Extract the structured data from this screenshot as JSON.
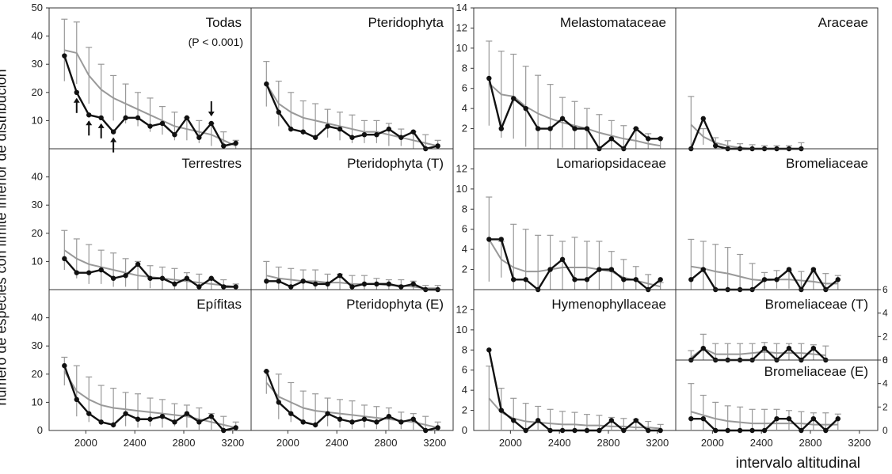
{
  "figure": {
    "ylabel": "número de especies con límite inferior de distribución",
    "xlabel": "intervalo altitudinal"
  },
  "chart_data": [
    {
      "type": "line",
      "title": "Todas",
      "annotation": "(P < 0.001)",
      "ylim": [
        0,
        50
      ],
      "yticks": [
        10,
        20,
        30,
        40,
        50
      ],
      "xticks": [
        2000,
        2400,
        2800,
        3200
      ],
      "x": [
        1825,
        1925,
        2025,
        2125,
        2225,
        2325,
        2425,
        2525,
        2625,
        2725,
        2825,
        2925,
        3025,
        3125,
        3225
      ],
      "series": [
        {
          "values": [
            33,
            20,
            12,
            11,
            6,
            11,
            11,
            8,
            9,
            5,
            11,
            4,
            9,
            1,
            2
          ]
        }
      ],
      "fit": [
        35,
        34,
        26,
        21,
        18,
        16,
        14,
        12,
        10,
        8,
        7,
        6,
        5,
        3,
        1
      ],
      "err": [
        11,
        11,
        10,
        9,
        8,
        7,
        6,
        6,
        5,
        5,
        4,
        4,
        4,
        3,
        2
      ]
    },
    {
      "type": "line",
      "title": "Pteridophyta",
      "ylim": [
        0,
        50
      ],
      "xticks": [
        2000,
        2400,
        2800,
        3200
      ],
      "x": [
        1825,
        1925,
        2025,
        2125,
        2225,
        2325,
        2425,
        2525,
        2625,
        2725,
        2825,
        2925,
        3025,
        3125,
        3225
      ],
      "series": [
        {
          "values": [
            23,
            13,
            7,
            6,
            4,
            8,
            7,
            4,
            5,
            5,
            7,
            4,
            6,
            0,
            1
          ]
        }
      ],
      "fit": [
        23,
        16,
        13,
        11,
        10,
        9,
        8,
        7,
        6,
        6,
        5,
        4,
        3,
        2,
        1
      ],
      "err": [
        8,
        8,
        7,
        6,
        6,
        5,
        5,
        5,
        4,
        4,
        4,
        3,
        3,
        3,
        2
      ]
    },
    {
      "type": "line",
      "title": "Melastomataceae",
      "ylim": [
        0,
        14
      ],
      "yticks": [
        2,
        4,
        6,
        8,
        10,
        12,
        14
      ],
      "xticks": [
        2000,
        2400,
        2800,
        3200
      ],
      "x": [
        1825,
        1925,
        2025,
        2125,
        2225,
        2325,
        2425,
        2525,
        2625,
        2725,
        2825,
        2925,
        3025,
        3125,
        3225
      ],
      "series": [
        {
          "values": [
            7,
            2,
            5,
            4,
            2,
            2,
            3,
            2,
            2,
            0,
            1,
            0,
            2,
            1,
            1
          ]
        }
      ],
      "fit": [
        6.5,
        5.4,
        5.2,
        4.2,
        3.5,
        3.0,
        2.6,
        2.3,
        2.0,
        1.6,
        1.3,
        1.0,
        0.8,
        0.5,
        0.3
      ],
      "err": [
        4.2,
        4.3,
        4.2,
        4.0,
        3.8,
        3.4,
        2.5,
        2.4,
        2.0,
        1.8,
        1.5,
        1.3,
        1.2,
        1.0,
        0.8
      ]
    },
    {
      "type": "line",
      "title": "Araceae",
      "ylim": [
        0,
        14
      ],
      "xticks": [
        2000,
        2400,
        2800,
        3200
      ],
      "x": [
        1825,
        1925,
        2025,
        2125,
        2225,
        2325,
        2425,
        2525,
        2625,
        2725
      ],
      "series": [
        {
          "values": [
            0,
            3,
            0.3,
            0,
            0,
            0,
            0,
            0,
            0,
            0
          ]
        }
      ],
      "fit": [
        2.4,
        1.2,
        0.6,
        0.3,
        0.1,
        0,
        0,
        0,
        0,
        0
      ],
      "err": [
        2.8,
        0.8,
        0.5,
        0.5,
        0.4,
        0.4,
        0.3,
        0.3,
        0.3,
        0.6
      ]
    },
    {
      "type": "line",
      "title": "Terrestres",
      "ylim": [
        0,
        50
      ],
      "yticks": [
        10,
        20,
        30,
        40
      ],
      "xticks": [
        2000,
        2400,
        2800,
        3200
      ],
      "x": [
        1825,
        1925,
        2025,
        2125,
        2225,
        2325,
        2425,
        2525,
        2625,
        2725,
        2825,
        2925,
        3025,
        3125,
        3225
      ],
      "series": [
        {
          "values": [
            11,
            6,
            6,
            7,
            4,
            5,
            9,
            4,
            4,
            2,
            4,
            1,
            4,
            1,
            1
          ]
        }
      ],
      "fit": [
        14,
        11,
        9,
        8,
        7,
        6,
        5,
        4.5,
        4,
        3.5,
        3,
        2.5,
        2,
        1.5,
        1
      ],
      "err": [
        7,
        7,
        7,
        6,
        6,
        5,
        5,
        4,
        4,
        4,
        3,
        3,
        2,
        2,
        1
      ]
    },
    {
      "type": "line",
      "title": "Pteridophyta (T)",
      "ylim": [
        0,
        50
      ],
      "xticks": [
        2000,
        2400,
        2800,
        3200
      ],
      "x": [
        1825,
        1925,
        2025,
        2125,
        2225,
        2325,
        2425,
        2525,
        2625,
        2725,
        2825,
        2925,
        3025,
        3125,
        3225
      ],
      "series": [
        {
          "values": [
            3,
            3,
            1,
            3,
            2,
            2,
            5,
            1,
            2,
            2,
            2,
            1,
            2,
            0,
            0
          ]
        }
      ],
      "fit": [
        5,
        4,
        3.5,
        3,
        3,
        2.5,
        2.5,
        2,
        2,
        2,
        1.5,
        1.5,
        1,
        0.5,
        0.5
      ],
      "err": [
        5,
        4,
        4,
        4,
        4,
        3,
        3,
        3,
        3,
        2,
        2,
        2,
        2,
        1,
        1
      ]
    },
    {
      "type": "line",
      "title": "Lomariopsidaceae",
      "ylim": [
        0,
        14
      ],
      "yticks": [
        2,
        4,
        6,
        8,
        10,
        12
      ],
      "xticks": [
        2000,
        2400,
        2800,
        3200
      ],
      "x": [
        1825,
        1925,
        2025,
        2125,
        2225,
        2325,
        2425,
        2525,
        2625,
        2725,
        2825,
        2925,
        3025,
        3125,
        3225
      ],
      "series": [
        {
          "values": [
            5,
            5,
            1,
            1,
            0,
            2,
            3,
            1,
            1,
            2,
            2,
            1,
            1,
            0,
            1
          ]
        }
      ],
      "fit": [
        5,
        3,
        2.2,
        1.8,
        1.8,
        2.0,
        2.2,
        2.2,
        2.2,
        2.0,
        1.8,
        1.2,
        0.9,
        0.6,
        0.3
      ],
      "err": [
        4.2,
        1.8,
        4.3,
        4.2,
        3.6,
        3.4,
        2.6,
        3.0,
        2.6,
        2.8,
        2.0,
        1.8,
        1.4,
        0.9,
        0.4
      ]
    },
    {
      "type": "line",
      "title": "Bromeliaceae",
      "ylim": [
        0,
        14
      ],
      "xticks": [
        2000,
        2400,
        2800,
        3200
      ],
      "x": [
        1825,
        1925,
        2025,
        2125,
        2225,
        2325,
        2425,
        2525,
        2625,
        2725,
        2825,
        2925,
        3025
      ],
      "series": [
        {
          "values": [
            1,
            2,
            0,
            0,
            0,
            0,
            1,
            1,
            2,
            0,
            2,
            0,
            1
          ]
        }
      ],
      "fit": [
        2.3,
        2.1,
        1.8,
        1.6,
        1.3,
        1.0,
        0.9,
        1.0,
        1.0,
        0.9,
        0.8,
        0.6,
        0.6
      ],
      "err": [
        2.7,
        2.7,
        2.7,
        2.6,
        2.2,
        1.6,
        0.8,
        0.9,
        0.9,
        0.9,
        1.0,
        1.0,
        0.8
      ]
    },
    {
      "type": "line",
      "title": "Epífitas",
      "ylim": [
        0,
        50
      ],
      "yticks": [
        10,
        20,
        30,
        40
      ],
      "xticks": [
        2000,
        2400,
        2800,
        3200
      ],
      "x": [
        1825,
        1925,
        2025,
        2125,
        2225,
        2325,
        2425,
        2525,
        2625,
        2725,
        2825,
        2925,
        3025,
        3125,
        3225
      ],
      "series": [
        {
          "values": [
            23,
            11,
            6,
            3,
            2,
            6,
            4,
            4,
            5,
            3,
            6,
            3,
            5,
            0,
            1
          ]
        }
      ],
      "fit": [
        21,
        14,
        11,
        9,
        8,
        7.5,
        7,
        6.5,
        6,
        5.5,
        5,
        4,
        3,
        2,
        1
      ],
      "err": [
        5,
        9,
        8,
        7,
        7,
        6,
        6,
        5,
        5,
        4,
        4,
        4,
        3,
        3,
        2
      ]
    },
    {
      "type": "line",
      "title": "Pteridophyta (E)",
      "ylim": [
        0,
        50
      ],
      "xticks": [
        2000,
        2400,
        2800,
        3200
      ],
      "x": [
        1825,
        1925,
        2025,
        2125,
        2225,
        2325,
        2425,
        2525,
        2625,
        2725,
        2825,
        2925,
        3025,
        3125,
        3225
      ],
      "series": [
        {
          "values": [
            21,
            10,
            6,
            3,
            2,
            6,
            4,
            3,
            4,
            3,
            5,
            3,
            4,
            0,
            1
          ]
        }
      ],
      "fit": [
        17,
        12,
        10,
        8,
        7,
        6.5,
        6,
        5.5,
        5,
        4.5,
        4,
        3.5,
        3,
        2,
        1
      ],
      "err": [
        4,
        8,
        7,
        6,
        6,
        5,
        5,
        5,
        4,
        4,
        4,
        3,
        3,
        3,
        2
      ]
    },
    {
      "type": "line",
      "title": "Hymenophyllaceae",
      "ylim": [
        0,
        14
      ],
      "yticks": [
        2,
        4,
        6,
        8,
        10,
        12
      ],
      "xticks": [
        2000,
        2400,
        2800,
        3200
      ],
      "x": [
        1825,
        1925,
        2025,
        2125,
        2225,
        2325,
        2425,
        2525,
        2625,
        2725,
        2825,
        2925,
        3025,
        3125,
        3225
      ],
      "series": [
        {
          "values": [
            8,
            2,
            1,
            0,
            1,
            0,
            0,
            0,
            0,
            0,
            1,
            0,
            1,
            0,
            0
          ]
        }
      ],
      "fit": [
        3.2,
        1.8,
        1.2,
        0.9,
        0.8,
        0.7,
        0.6,
        0.6,
        0.5,
        0.5,
        0.4,
        0.4,
        0.3,
        0.3,
        0.2
      ],
      "err": [
        3.2,
        2.4,
        2.0,
        1.8,
        1.6,
        1.4,
        1.3,
        1.2,
        1.1,
        1.0,
        0.9,
        0.8,
        0.8,
        0.6,
        0.4
      ]
    },
    {
      "type": "line",
      "title": "Bromeliaceae (T)",
      "ylim": [
        0,
        6
      ],
      "yticks_right": [
        2,
        4,
        6
      ],
      "xticks": [],
      "x": [
        1825,
        1925,
        2025,
        2125,
        2225,
        2325,
        2425,
        2525,
        2625,
        2725,
        2825,
        2925
      ],
      "series": [
        {
          "values": [
            0,
            1,
            0,
            0,
            0,
            0,
            1,
            0,
            1,
            0,
            1,
            0
          ]
        }
      ],
      "fit": [
        0.2,
        1.0,
        0.5,
        0.5,
        0.5,
        0.6,
        0.7,
        0.6,
        0.6,
        0.6,
        0.5,
        0.4
      ],
      "err": [
        0.6,
        1.2,
        0.9,
        0.9,
        0.9,
        0.8,
        0.8,
        0.8,
        0.8,
        0.8,
        0.8,
        0.8
      ]
    },
    {
      "type": "line",
      "title": "Bromeliaceae (E)",
      "ylim": [
        0,
        6
      ],
      "yticks_right": [
        2,
        4,
        6
      ],
      "xticks": [
        2000,
        2400,
        2800,
        3200
      ],
      "x": [
        1825,
        1925,
        2025,
        2125,
        2225,
        2325,
        2425,
        2525,
        2625,
        2725,
        2825,
        2925,
        3025
      ],
      "series": [
        {
          "values": [
            1,
            1,
            0,
            0,
            0,
            0,
            0,
            1,
            1,
            0,
            1,
            0,
            1
          ]
        }
      ],
      "fit": [
        1.6,
        1.3,
        1.0,
        0.8,
        0.7,
        0.6,
        0.6,
        0.6,
        0.6,
        0.6,
        0.5,
        0.5,
        0.5
      ],
      "err": [
        2.4,
        1.7,
        1.4,
        1.3,
        1.3,
        1.2,
        1.2,
        1.2,
        1.1,
        1.0,
        1.0,
        1.0,
        0.9
      ]
    }
  ]
}
